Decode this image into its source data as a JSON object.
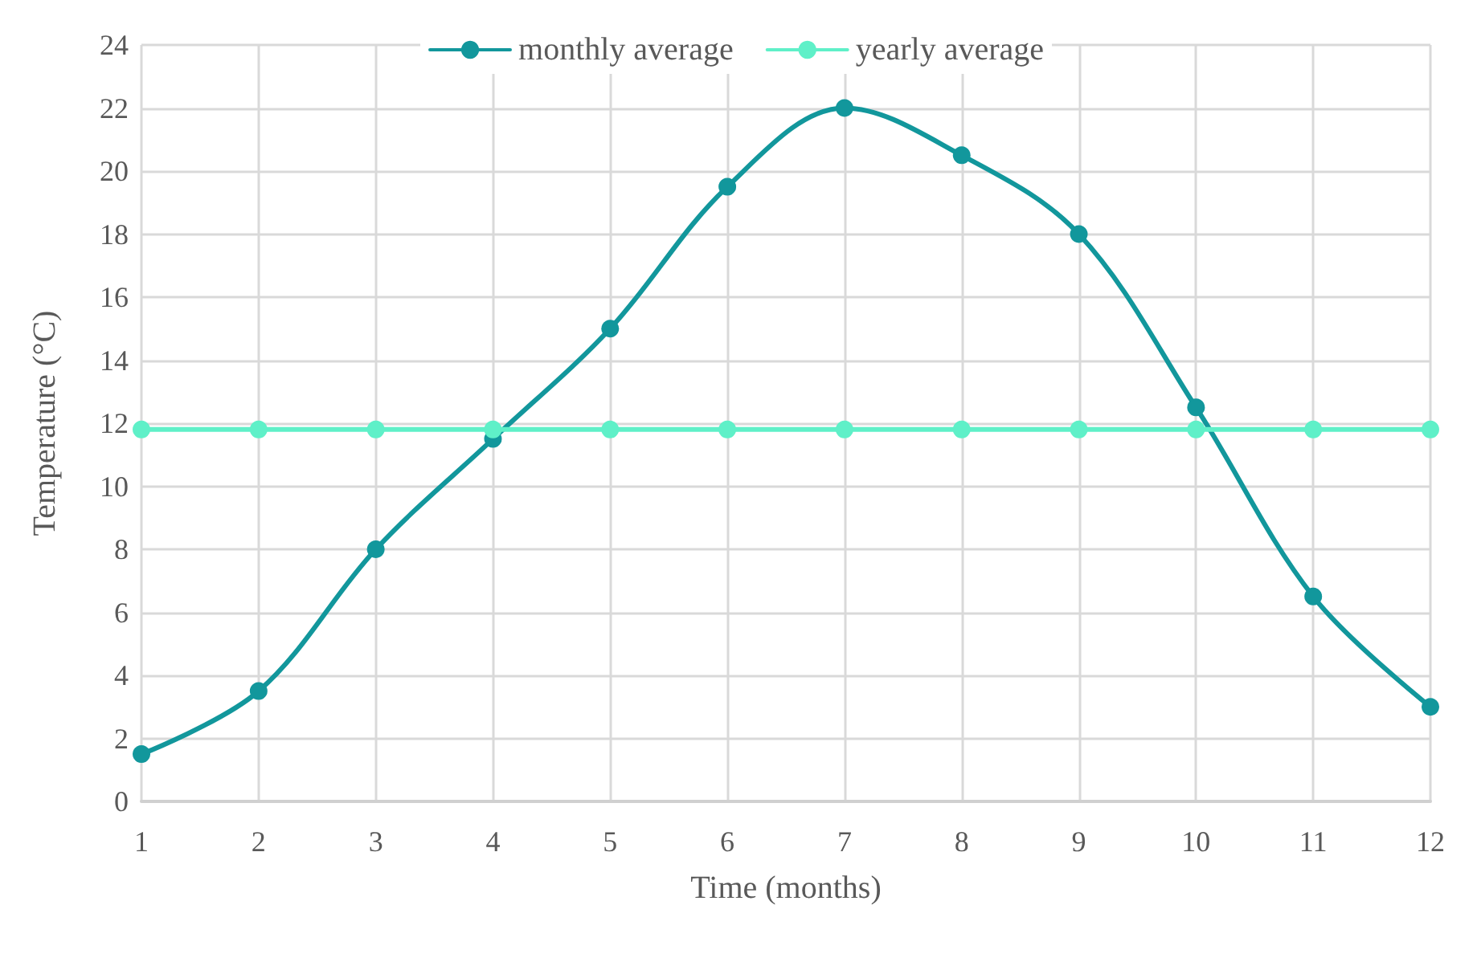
{
  "chart_data": {
    "type": "line",
    "xlabel": "Time (months)",
    "ylabel": "Temperature (°C)",
    "x": [
      1,
      2,
      3,
      4,
      5,
      6,
      7,
      8,
      9,
      10,
      11,
      12
    ],
    "series": [
      {
        "name": "monthly average",
        "color": "#12979c",
        "values": [
          1.5,
          3.5,
          8,
          11.5,
          15,
          19.5,
          22,
          20.5,
          18,
          12.5,
          6.5,
          3
        ]
      },
      {
        "name": "yearly average",
        "color": "#5ff0c8",
        "values": [
          11.8,
          11.8,
          11.8,
          11.8,
          11.8,
          11.8,
          11.8,
          11.8,
          11.8,
          11.8,
          11.8,
          11.8
        ]
      }
    ],
    "xlim": [
      1,
      12
    ],
    "xticks": [
      1,
      2,
      3,
      4,
      5,
      6,
      7,
      8,
      9,
      10,
      11,
      12
    ],
    "ylim": [
      0,
      24
    ],
    "yticks": [
      0,
      2,
      4,
      6,
      8,
      10,
      12,
      14,
      16,
      18,
      20,
      22,
      24
    ],
    "grid": true,
    "legend": "top",
    "marker": "circle",
    "line_style": "solid"
  }
}
